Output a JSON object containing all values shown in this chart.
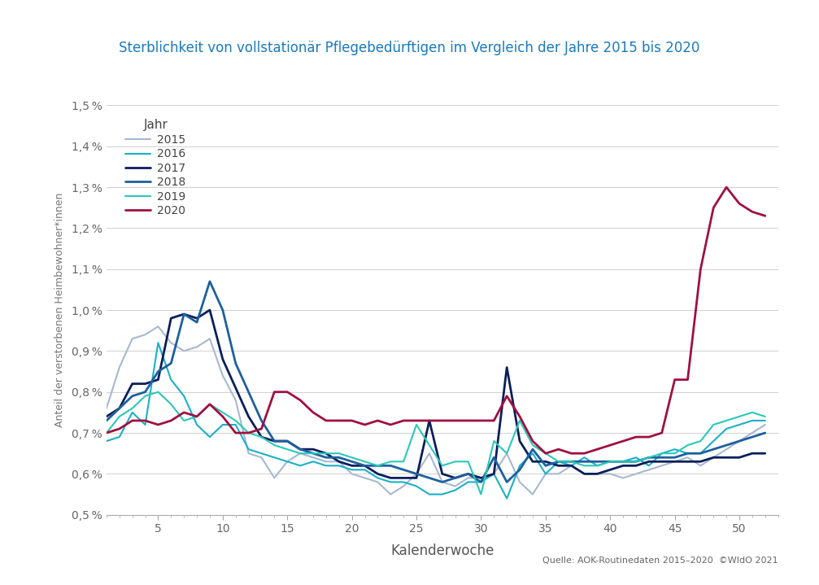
{
  "title": "Sterblichkeit von vollstationär Pflegebedürftigen im Vergleich der Jahre 2015 bis 2020",
  "title_color": "#1a7abf",
  "xlabel": "Kalenderwoche",
  "ylabel": "Anteil der verstorbenen Heimbewohner*innen",
  "source_text": "Quelle: AOK-Routinedaten 2015–2020  ©WIdO 2021",
  "legend_title": "Jahr",
  "ytick_labels": [
    "0,5 %",
    "0,6 %",
    "0,7 %",
    "0,8 %",
    "0,9 %",
    "1,0 %",
    "1,1 %",
    "1,2 %",
    "1,3 %",
    "1,4 %",
    "1,5 %"
  ],
  "ytick_values": [
    0.005,
    0.006,
    0.007,
    0.008,
    0.009,
    0.01,
    0.011,
    0.012,
    0.013,
    0.014,
    0.015
  ],
  "xtick_values": [
    5,
    10,
    15,
    20,
    25,
    30,
    35,
    40,
    45,
    50
  ],
  "series": {
    "2015": {
      "color": "#a8b8d0",
      "linewidth": 1.5,
      "data": [
        0.0076,
        0.0086,
        0.0093,
        0.0094,
        0.0096,
        0.0092,
        0.009,
        0.0091,
        0.0093,
        0.0084,
        0.0078,
        0.0065,
        0.0064,
        0.0059,
        0.0063,
        0.0065,
        0.0064,
        0.0063,
        0.0063,
        0.006,
        0.0059,
        0.0058,
        0.0055,
        0.0057,
        0.006,
        0.0065,
        0.0058,
        0.0057,
        0.0059,
        0.0059,
        0.006,
        0.0065,
        0.0058,
        0.0055,
        0.006,
        0.006,
        0.0062,
        0.006,
        0.006,
        0.006,
        0.0059,
        0.006,
        0.0061,
        0.0062,
        0.0063,
        0.0064,
        0.0062,
        0.0064,
        0.0066,
        0.0068,
        0.007,
        0.0072
      ]
    },
    "2016": {
      "color": "#1ab0c8",
      "linewidth": 1.5,
      "data": [
        0.0068,
        0.0069,
        0.0075,
        0.0072,
        0.0092,
        0.0083,
        0.0079,
        0.0072,
        0.0069,
        0.0072,
        0.0072,
        0.0066,
        0.0065,
        0.0064,
        0.0063,
        0.0062,
        0.0063,
        0.0062,
        0.0062,
        0.0061,
        0.0061,
        0.0059,
        0.0058,
        0.0058,
        0.0057,
        0.0055,
        0.0055,
        0.0056,
        0.0058,
        0.0058,
        0.006,
        0.0054,
        0.0062,
        0.0065,
        0.006,
        0.0063,
        0.0062,
        0.0064,
        0.0062,
        0.0063,
        0.0063,
        0.0064,
        0.0062,
        0.0065,
        0.0066,
        0.0065,
        0.0065,
        0.0068,
        0.0071,
        0.0072,
        0.0073,
        0.0073
      ]
    },
    "2017": {
      "color": "#0a1f5a",
      "linewidth": 2.0,
      "data": [
        0.0074,
        0.0076,
        0.0082,
        0.0082,
        0.0083,
        0.0098,
        0.0099,
        0.0098,
        0.01,
        0.0088,
        0.0081,
        0.0074,
        0.0069,
        0.0068,
        0.0068,
        0.0066,
        0.0066,
        0.0065,
        0.0063,
        0.0062,
        0.0062,
        0.006,
        0.0059,
        0.0059,
        0.0059,
        0.0073,
        0.006,
        0.0059,
        0.006,
        0.0059,
        0.006,
        0.0086,
        0.0068,
        0.0063,
        0.0063,
        0.0062,
        0.0062,
        0.006,
        0.006,
        0.0061,
        0.0062,
        0.0062,
        0.0063,
        0.0063,
        0.0063,
        0.0063,
        0.0063,
        0.0064,
        0.0064,
        0.0064,
        0.0065,
        0.0065
      ]
    },
    "2018": {
      "color": "#1e5fa0",
      "linewidth": 2.0,
      "data": [
        0.0073,
        0.0076,
        0.0079,
        0.008,
        0.0085,
        0.0087,
        0.0099,
        0.0097,
        0.0107,
        0.01,
        0.0087,
        0.008,
        0.0073,
        0.0068,
        0.0068,
        0.0066,
        0.0065,
        0.0064,
        0.0064,
        0.0063,
        0.0062,
        0.0062,
        0.0062,
        0.0061,
        0.006,
        0.0059,
        0.0058,
        0.0059,
        0.006,
        0.0058,
        0.0064,
        0.0058,
        0.0061,
        0.0066,
        0.0062,
        0.0063,
        0.0063,
        0.0063,
        0.0063,
        0.0063,
        0.0063,
        0.0063,
        0.0064,
        0.0064,
        0.0064,
        0.0065,
        0.0065,
        0.0066,
        0.0067,
        0.0068,
        0.0069,
        0.007
      ]
    },
    "2019": {
      "color": "#2ac8b8",
      "linewidth": 1.5,
      "data": [
        0.007,
        0.0074,
        0.0076,
        0.0079,
        0.008,
        0.0077,
        0.0073,
        0.0074,
        0.0077,
        0.0075,
        0.0073,
        0.007,
        0.0069,
        0.0067,
        0.0066,
        0.0065,
        0.0065,
        0.0065,
        0.0065,
        0.0064,
        0.0063,
        0.0062,
        0.0063,
        0.0063,
        0.0072,
        0.0067,
        0.0062,
        0.0063,
        0.0063,
        0.0055,
        0.0068,
        0.0065,
        0.0073,
        0.0067,
        0.0065,
        0.0063,
        0.0063,
        0.0062,
        0.0062,
        0.0063,
        0.0063,
        0.0063,
        0.0064,
        0.0065,
        0.0065,
        0.0067,
        0.0068,
        0.0072,
        0.0073,
        0.0074,
        0.0075,
        0.0074
      ]
    },
    "2020": {
      "color": "#a01040",
      "linewidth": 2.0,
      "data": [
        0.007,
        0.0071,
        0.0073,
        0.0073,
        0.0072,
        0.0073,
        0.0075,
        0.0074,
        0.0077,
        0.0074,
        0.007,
        0.007,
        0.0071,
        0.008,
        0.008,
        0.0078,
        0.0075,
        0.0073,
        0.0073,
        0.0073,
        0.0072,
        0.0073,
        0.0072,
        0.0073,
        0.0073,
        0.0073,
        0.0073,
        0.0073,
        0.0073,
        0.0073,
        0.0073,
        0.0079,
        0.0074,
        0.0068,
        0.0065,
        0.0066,
        0.0065,
        0.0065,
        0.0066,
        0.0067,
        0.0068,
        0.0069,
        0.0069,
        0.007,
        0.0083,
        0.0083,
        0.011,
        0.0125,
        0.013,
        0.0126,
        0.0124,
        0.0123
      ]
    }
  },
  "background_color": "#ffffff",
  "grid_color": "#d0d0d0",
  "xlim": [
    1,
    53
  ]
}
